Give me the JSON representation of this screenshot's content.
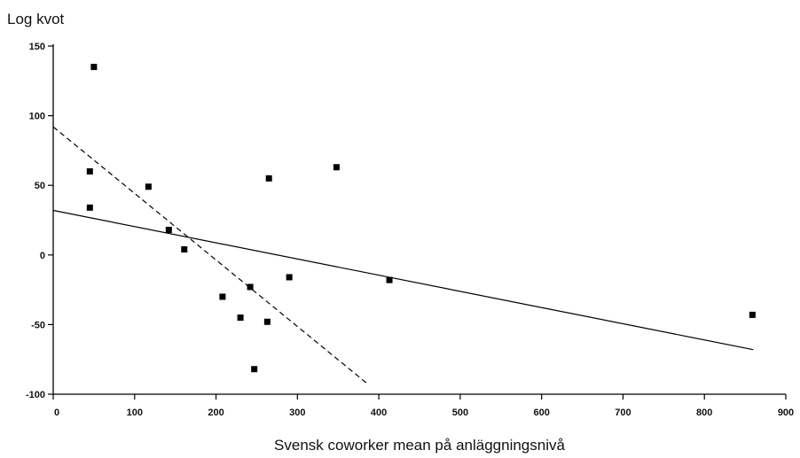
{
  "chart_data": {
    "type": "scatter",
    "title": "",
    "xlabel": "Svensk coworker mean på anläggningsnivå",
    "ylabel": "Log kvot",
    "xlim": [
      0,
      900
    ],
    "ylim": [
      -100,
      150
    ],
    "x_ticks": [
      0,
      100,
      200,
      300,
      400,
      500,
      600,
      700,
      800,
      900
    ],
    "y_ticks": [
      -100,
      -50,
      0,
      50,
      100,
      150
    ],
    "grid": false,
    "legend": "none",
    "points": [
      {
        "x": 50,
        "y": 135
      },
      {
        "x": 45,
        "y": 60
      },
      {
        "x": 45,
        "y": 34
      },
      {
        "x": 117,
        "y": 49
      },
      {
        "x": 142,
        "y": 18
      },
      {
        "x": 161,
        "y": 4
      },
      {
        "x": 208,
        "y": -30
      },
      {
        "x": 230,
        "y": -45
      },
      {
        "x": 242,
        "y": -23
      },
      {
        "x": 247,
        "y": -82
      },
      {
        "x": 263,
        "y": -48
      },
      {
        "x": 265,
        "y": 55
      },
      {
        "x": 290,
        "y": -16
      },
      {
        "x": 348,
        "y": 63
      },
      {
        "x": 413,
        "y": -18
      },
      {
        "x": 859,
        "y": -43
      }
    ],
    "lines": [
      {
        "style": "solid",
        "from": [
          0,
          32
        ],
        "to": [
          860,
          -68
        ]
      },
      {
        "style": "dashed",
        "from": [
          0,
          92
        ],
        "to": [
          385,
          -92
        ]
      }
    ],
    "colors": {
      "marker": "#000000",
      "line": "#000000",
      "axis": "#000000"
    }
  }
}
